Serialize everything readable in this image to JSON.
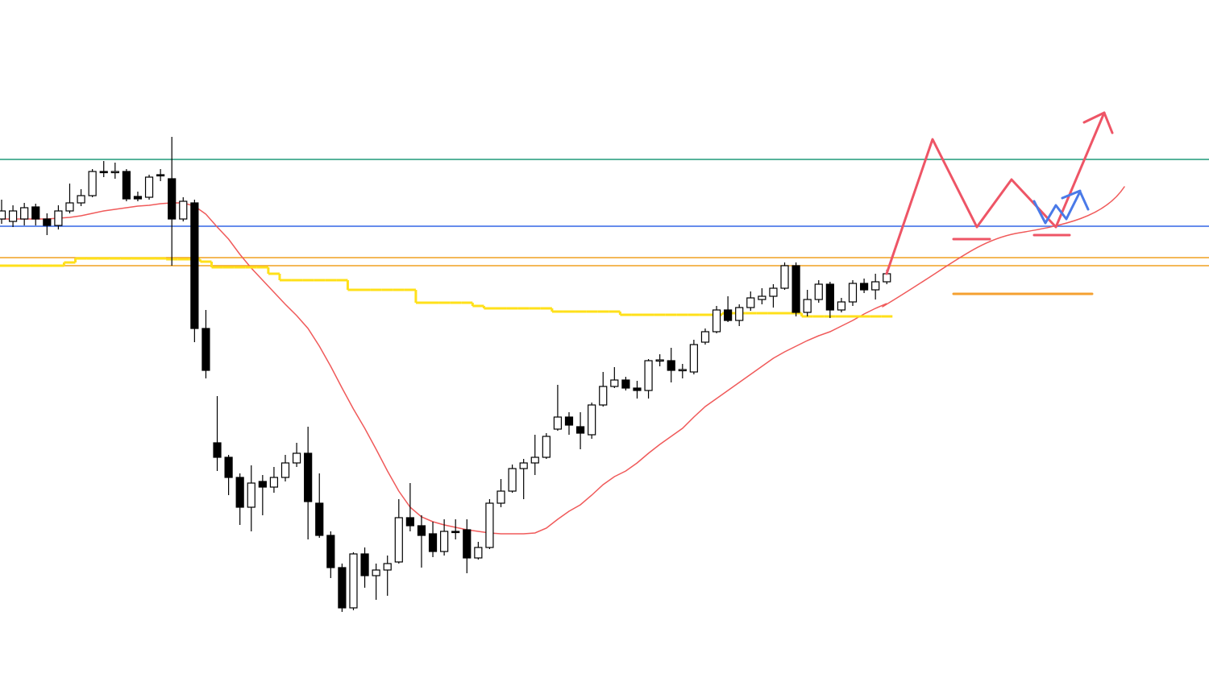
{
  "chart_data": {
    "type": "candlestick",
    "categories": [
      null,
      null,
      null,
      null,
      null,
      null,
      null,
      null,
      null,
      null,
      null,
      null,
      null,
      null,
      null,
      null,
      null,
      null,
      null,
      null,
      null,
      null,
      null,
      null,
      null,
      null,
      null,
      null,
      null,
      null,
      null,
      null,
      null,
      null,
      null,
      null,
      null,
      null,
      null,
      null,
      null,
      null,
      null,
      null,
      null,
      null,
      null,
      null,
      null,
      null,
      null,
      null,
      null,
      null,
      null,
      null,
      null,
      null,
      null,
      null,
      null,
      null,
      null,
      null,
      null,
      null,
      null,
      null,
      null,
      null,
      null,
      null,
      null,
      null,
      null,
      null,
      null,
      null,
      null
    ],
    "open": [
      590,
      587,
      590,
      605,
      590,
      582,
      600,
      610,
      619,
      649,
      648,
      649,
      618,
      617,
      645,
      640,
      590,
      610,
      454,
      312,
      294,
      269,
      232,
      264,
      257,
      269,
      287,
      299,
      237,
      197,
      157,
      107,
      174,
      147,
      154,
      164,
      219,
      209,
      199,
      177,
      202,
      204,
      169,
      182,
      237,
      252,
      280,
      287,
      294,
      329,
      344,
      332,
      322,
      359,
      382,
      390,
      380,
      377,
      414,
      414,
      402,
      400,
      437,
      450,
      477,
      464,
      480,
      490,
      494,
      504,
      532,
      474,
      490,
      509,
      477,
      487,
      510,
      502,
      512
    ],
    "high": [
      614,
      607,
      610,
      609,
      597,
      607,
      634,
      627,
      652,
      662,
      660,
      652,
      624,
      645,
      652,
      692,
      617,
      614,
      477,
      370,
      297,
      274,
      284,
      272,
      282,
      297,
      312,
      332,
      274,
      202,
      162,
      176,
      182,
      162,
      172,
      242,
      262,
      222,
      214,
      217,
      217,
      217,
      189,
      242,
      267,
      285,
      292,
      322,
      324,
      384,
      350,
      350,
      362,
      400,
      406,
      394,
      389,
      416,
      422,
      430,
      410,
      440,
      454,
      482,
      494,
      484,
      500,
      504,
      509,
      536,
      536,
      502,
      514,
      512,
      492,
      514,
      516,
      522,
      527
    ],
    "low": [
      584,
      580,
      582,
      582,
      570,
      577,
      597,
      606,
      617,
      642,
      640,
      612,
      612,
      614,
      637,
      532,
      587,
      437,
      392,
      277,
      247,
      210,
      202,
      222,
      250,
      264,
      282,
      192,
      194,
      144,
      102,
      104,
      132,
      117,
      122,
      162,
      202,
      157,
      170,
      172,
      192,
      150,
      167,
      180,
      232,
      250,
      242,
      272,
      292,
      327,
      322,
      304,
      317,
      357,
      380,
      377,
      367,
      367,
      407,
      387,
      392,
      397,
      434,
      448,
      462,
      457,
      476,
      484,
      480,
      502,
      469,
      469,
      486,
      467,
      474,
      482,
      498,
      490,
      509
    ],
    "close": [
      600,
      600,
      604,
      590,
      582,
      600,
      610,
      619,
      649,
      648,
      649,
      615,
      615,
      642,
      644,
      590,
      612,
      454,
      402,
      294,
      269,
      232,
      262,
      257,
      269,
      287,
      299,
      239,
      197,
      157,
      107,
      174,
      147,
      154,
      162,
      219,
      209,
      197,
      177,
      202,
      201,
      169,
      182,
      237,
      252,
      280,
      287,
      294,
      320,
      344,
      334,
      324,
      359,
      382,
      390,
      380,
      377,
      414,
      415,
      402,
      403,
      434,
      450,
      477,
      464,
      480,
      492,
      494,
      504,
      532,
      474,
      490,
      509,
      477,
      487,
      510,
      502,
      512,
      522
    ],
    "up_color": "#ffffff",
    "down_color": "#000000",
    "series": [
      {
        "color": "#f05a5a",
        "values": [
          590,
          590,
          590,
          590,
          590,
          591,
          592,
          594,
          597,
          600,
          602,
          604,
          606,
          607,
          609,
          610,
          610,
          606,
          596,
          580,
          565,
          546,
          529,
          514,
          499,
          484,
          470,
          454,
          432,
          407,
          380,
          354,
          330,
          304,
          277,
          252,
          232,
          220,
          214,
          210,
          207,
          204,
          202,
          200,
          199,
          199,
          199,
          200,
          206,
          217,
          227,
          235,
          247,
          260,
          270,
          277,
          287,
          299,
          310,
          320,
          330,
          344,
          357,
          367,
          377,
          387,
          397,
          407,
          417,
          425,
          432,
          439,
          445,
          450,
          457,
          464,
          472,
          479,
          485
        ]
      },
      {
        "color": "#ffe01a",
        "step": true,
        "values": [
          532,
          532,
          532,
          532,
          532,
          532,
          536,
          541,
          541,
          541,
          541,
          541,
          541,
          541,
          541,
          540,
          540,
          540,
          537,
          530,
          530,
          530,
          530,
          530,
          522,
          514,
          514,
          514,
          514,
          514,
          514,
          502,
          502,
          502,
          502,
          502,
          502,
          486,
          486,
          486,
          486,
          486,
          482,
          479,
          479,
          479,
          479,
          479,
          479,
          475,
          475,
          475,
          475,
          475,
          475,
          471,
          471,
          471,
          471,
          471,
          471,
          471,
          471,
          471,
          473,
          473,
          473,
          473,
          473,
          473,
          473,
          469,
          469,
          469,
          469,
          469,
          469,
          469,
          469
        ]
      }
    ],
    "levels": [
      {
        "value": 664,
        "color": "#1f9a7a"
      },
      {
        "value": 581,
        "color": "#3366e6"
      },
      {
        "value": 542,
        "color": "#f0a020"
      },
      {
        "value": 532,
        "color": "#f0a020"
      }
    ],
    "ylim": [
      0,
      862
    ]
  }
}
